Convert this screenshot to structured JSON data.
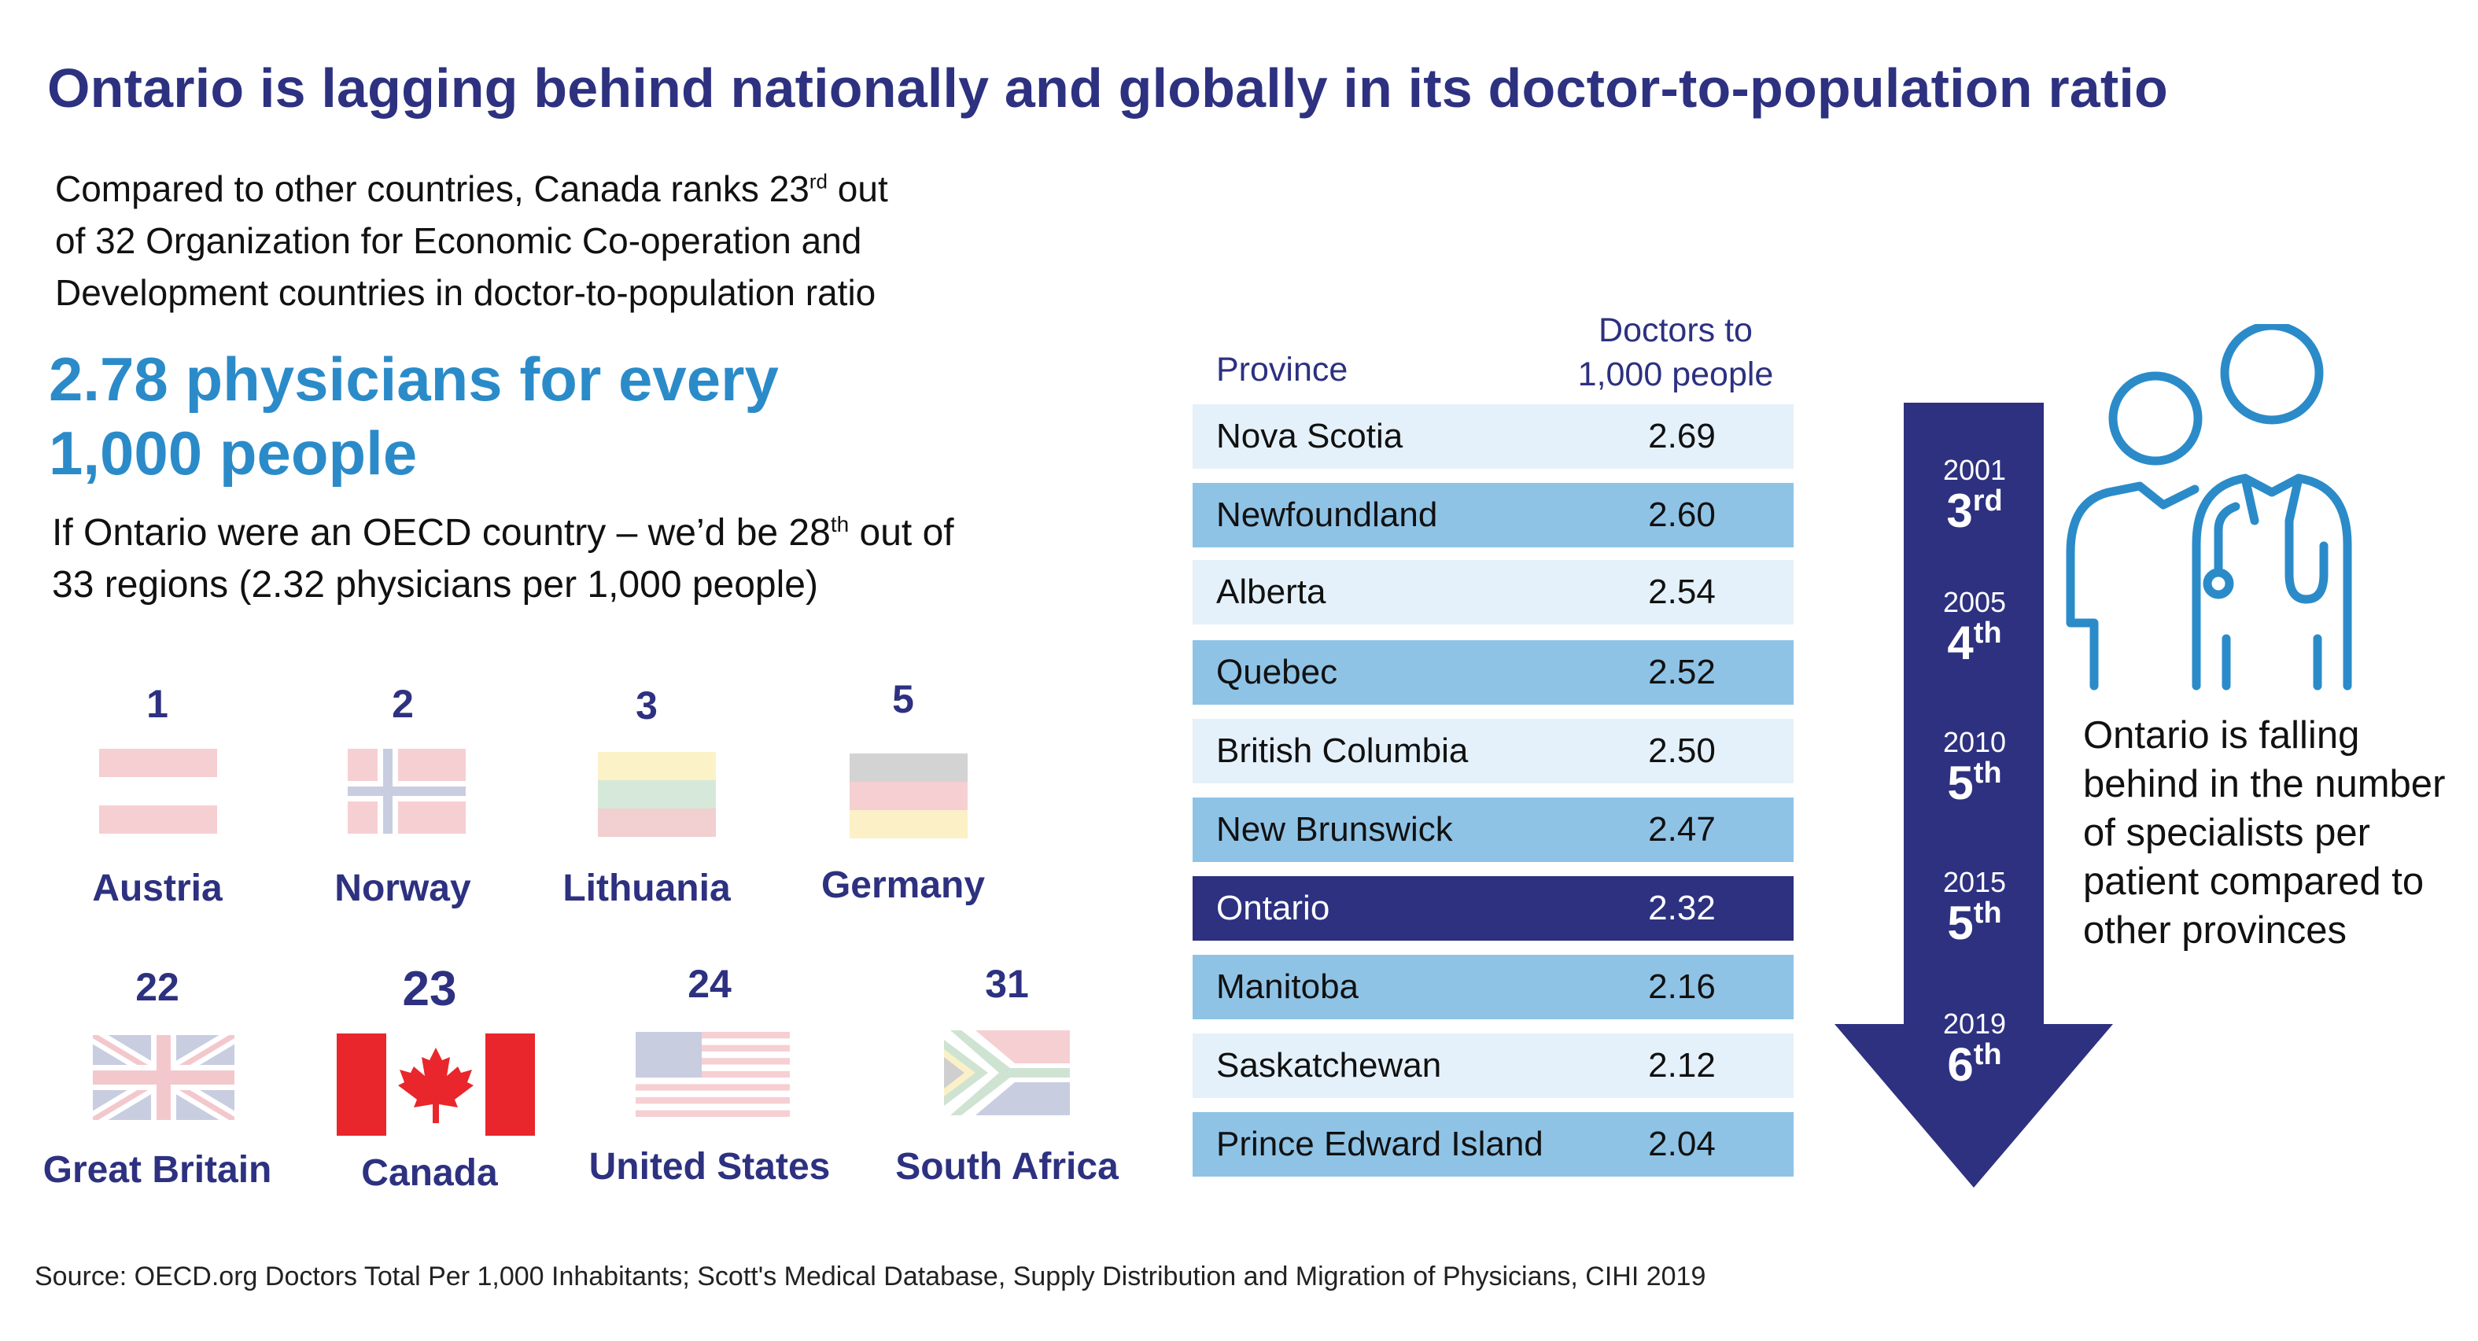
{
  "title": "Ontario is lagging behind nationally and globally in its doctor-to-population ratio",
  "intro": {
    "line1": "Compared to other countries, Canada ranks 23",
    "line1_sup": "rd",
    "line1_tail": " out",
    "line2": "of 32 Organization for Economic Co-operation and",
    "line3": "Development countries in doctor-to-population ratio"
  },
  "big_stat": {
    "line1": "2.78 physicians for every",
    "line2": "1,000 people"
  },
  "ontario_oecd": {
    "text": "If Ontario were an OECD country – we’d be 28",
    "sup": "th",
    "tail": " out of",
    "line2": "33 regions (2.32 physicians per 1,000 people)"
  },
  "countries": [
    {
      "rank": "1",
      "name": "Austria"
    },
    {
      "rank": "2",
      "name": "Norway"
    },
    {
      "rank": "3",
      "name": "Lithuania"
    },
    {
      "rank": "5",
      "name": "Germany"
    },
    {
      "rank": "22",
      "name": "Great Britain"
    },
    {
      "rank": "23",
      "name": "Canada"
    },
    {
      "rank": "24",
      "name": "United States"
    },
    {
      "rank": "31",
      "name": "South Africa"
    }
  ],
  "table": {
    "header_province": "Province",
    "header_ratio_line1": "Doctors to",
    "header_ratio_line2": "1,000 people",
    "rows": [
      {
        "province": "Nova Scotia",
        "value": "2.69"
      },
      {
        "province": "Newfoundland",
        "value": "2.60"
      },
      {
        "province": "Alberta",
        "value": "2.54"
      },
      {
        "province": "Quebec",
        "value": "2.52"
      },
      {
        "province": "British Columbia",
        "value": "2.50"
      },
      {
        "province": "New Brunswick",
        "value": "2.47"
      },
      {
        "province": "Ontario",
        "value": "2.32"
      },
      {
        "province": "Manitoba",
        "value": "2.16"
      },
      {
        "province": "Saskatchewan",
        "value": "2.12"
      },
      {
        "province": "Prince Edward Island",
        "value": "2.04"
      }
    ]
  },
  "timeline": [
    {
      "year": "2001",
      "rank": "3",
      "suffix": "rd"
    },
    {
      "year": "2005",
      "rank": "4",
      "suffix": "th"
    },
    {
      "year": "2010",
      "rank": "5",
      "suffix": "th"
    },
    {
      "year": "2015",
      "rank": "5",
      "suffix": "th"
    },
    {
      "year": "2019",
      "rank": "6",
      "suffix": "th"
    }
  ],
  "specialists_text": "Ontario is falling behind in the number of specialists per patient compared to other provinces",
  "source": "Source: OECD.org Doctors Total Per 1,000 Inhabitants; Scott's Medical Database, Supply Distribution and Migration of Physicians, CIHI 2019",
  "colors": {
    "navy": "#2d3180",
    "blue": "#2b8bc9",
    "row_light": "#e4f1fa",
    "row_mid": "#8fc3e6",
    "icon_blue": "#2b8bc9"
  },
  "icons": [
    "doctor-and-patient-icon",
    "down-arrow-icon"
  ]
}
